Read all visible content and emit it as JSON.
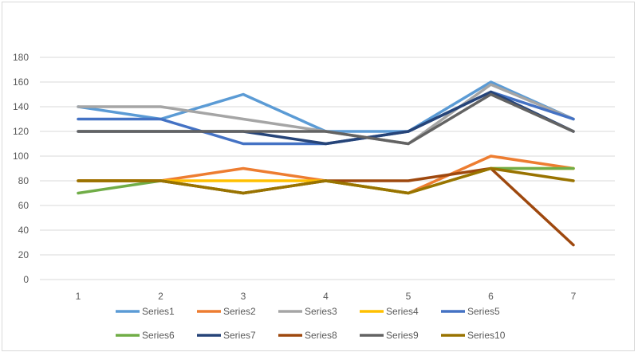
{
  "chart_data": {
    "type": "line",
    "title": "",
    "xlabel": "",
    "ylabel": "",
    "x": [
      "1",
      "2",
      "3",
      "4",
      "5",
      "6",
      "7"
    ],
    "ylim": [
      0,
      180
    ],
    "yticks": [
      0,
      20,
      40,
      60,
      80,
      100,
      120,
      140,
      160,
      180
    ],
    "grid": true,
    "legend_position": "bottom",
    "series": [
      {
        "name": "Series1",
        "color": "#5B9BD5",
        "values": [
          140,
          130,
          150,
          120,
          120,
          160,
          130
        ]
      },
      {
        "name": "Series2",
        "color": "#ED7D31",
        "values": [
          80,
          80,
          90,
          80,
          70,
          100,
          90
        ]
      },
      {
        "name": "Series3",
        "color": "#A5A5A5",
        "values": [
          140,
          140,
          130,
          120,
          110,
          158,
          130
        ]
      },
      {
        "name": "Series4",
        "color": "#FFC000",
        "values": [
          80,
          80,
          80,
          80,
          70,
          90,
          90
        ]
      },
      {
        "name": "Series5",
        "color": "#4472C4",
        "values": [
          130,
          130,
          110,
          110,
          120,
          152,
          130
        ]
      },
      {
        "name": "Series6",
        "color": "#70AD47",
        "values": [
          70,
          80,
          70,
          80,
          70,
          90,
          90
        ]
      },
      {
        "name": "Series7",
        "color": "#264478",
        "values": [
          120,
          120,
          120,
          110,
          120,
          152,
          120
        ]
      },
      {
        "name": "Series8",
        "color": "#9E480E",
        "values": [
          80,
          80,
          70,
          80,
          80,
          90,
          28
        ]
      },
      {
        "name": "Series9",
        "color": "#636363",
        "values": [
          120,
          120,
          120,
          120,
          110,
          150,
          120
        ]
      },
      {
        "name": "Series10",
        "color": "#997300",
        "values": [
          80,
          80,
          70,
          80,
          70,
          90,
          80
        ]
      }
    ]
  }
}
